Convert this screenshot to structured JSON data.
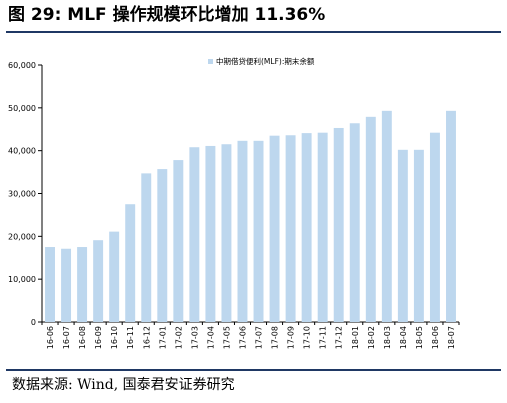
{
  "header": {
    "title": "图 29:  MLF 操作规模环比增加 11.36%"
  },
  "footer": {
    "source": "数据来源:  Wind, 国泰君安证券研究"
  },
  "colors": {
    "bar": "#bdd7ee",
    "axis": "#000000",
    "rule": "#1f3864"
  },
  "chart_data": {
    "type": "bar",
    "title": "",
    "xlabel": "",
    "ylabel": "",
    "ylim": [
      0,
      60000
    ],
    "yticks": [
      "0",
      "10,000",
      "20,000",
      "30,000",
      "40,000",
      "50,000",
      "60,000"
    ],
    "grid": false,
    "legend_position": "top",
    "categories": [
      "16-06",
      "16-07",
      "16-08",
      "16-09",
      "16-10",
      "16-11",
      "16-12",
      "17-01",
      "17-02",
      "17-03",
      "17-04",
      "17-05",
      "17-06",
      "17-07",
      "17-08",
      "17-09",
      "17-10",
      "17-11",
      "17-12",
      "18-01",
      "18-02",
      "18-03",
      "18-04",
      "18-05",
      "18-06",
      "18-07"
    ],
    "series": [
      {
        "name": "中期借贷便利(MLF):期末余额",
        "values": [
          17500,
          17100,
          17500,
          19100,
          21100,
          27500,
          34700,
          35700,
          37800,
          40800,
          41100,
          41500,
          42300,
          42300,
          43500,
          43600,
          44100,
          44200,
          45300,
          46400,
          47900,
          49300,
          40200,
          40200,
          44200,
          49300
        ]
      }
    ]
  }
}
